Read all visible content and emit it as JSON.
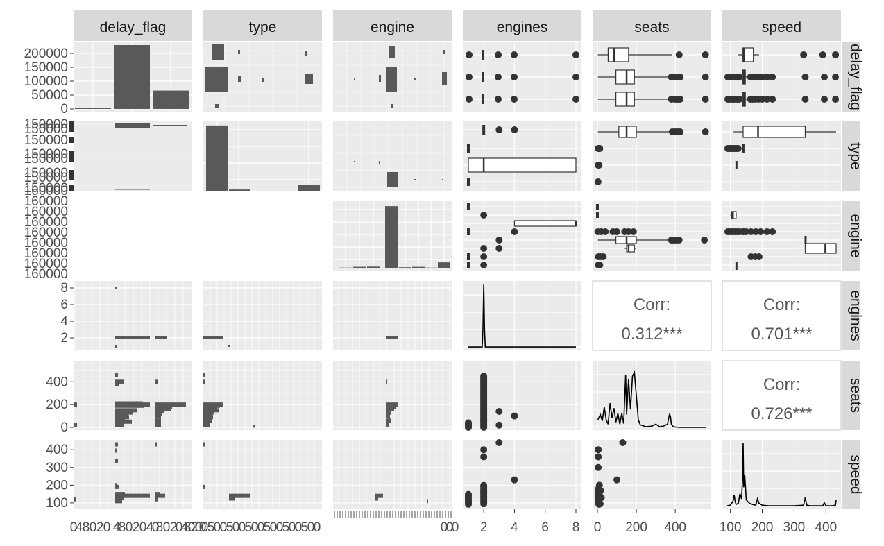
{
  "chart_data": {
    "type": "pairs",
    "variables": [
      "delay_flag",
      "type",
      "engine",
      "engines",
      "seats",
      "speed"
    ],
    "row_tick_labels": {
      "delay_flag": [
        "200000",
        "150000",
        "100000",
        "50000",
        "0"
      ],
      "type": [
        "150000",
        "150000",
        "150000",
        "150000",
        "150000",
        "150000",
        "150000",
        "150000"
      ],
      "engine": [
        "160000",
        "160000",
        "160000",
        "160000",
        "160000",
        "160000",
        "160000",
        "160000",
        "160000"
      ],
      "engines": [
        "8",
        "6",
        "4",
        "2"
      ],
      "seats": [
        "400",
        "200",
        "0"
      ],
      "speed": [
        "400",
        "300",
        "200",
        "100"
      ]
    },
    "col_tick_labels": {
      "delay_flag": [
        "0",
        "4",
        "8",
        "0",
        "2",
        "0",
        "4",
        "8",
        "0",
        "2",
        "0",
        "4",
        "0",
        "8",
        "0",
        "2",
        "0",
        "4",
        "8",
        "0",
        "2",
        "0",
        "0"
      ],
      "type": [
        "0",
        "5",
        "0",
        "0",
        "5",
        "0",
        "0",
        "5",
        "0",
        "0",
        "5",
        "0",
        "0",
        "5",
        "0",
        "0",
        "5",
        "0",
        "0"
      ],
      "engine": [
        "0",
        "0",
        "0"
      ],
      "engines": [
        "2",
        "4",
        "6",
        "8"
      ],
      "seats": [
        "0",
        "200",
        "400"
      ],
      "speed": [
        "100",
        "200",
        "300",
        "400"
      ]
    },
    "delay_flag_counts": [
      5000,
      230000,
      66000
    ],
    "delay_flag_ylim": [
      0,
      230000
    ],
    "type_counts": [
      152000,
      3000,
      14000
    ],
    "engine_counts": [
      500,
      2500,
      3000,
      158000,
      1500,
      2500,
      500,
      14000
    ],
    "engines_range": [
      1,
      8
    ],
    "seats_range": [
      2,
      600
    ],
    "speed_range": [
      90,
      432
    ],
    "engines_density": {
      "x": [
        1,
        1.9,
        1.95,
        2,
        2.05,
        2.1,
        3,
        4,
        8
      ],
      "y": [
        0.01,
        0.01,
        0.3,
        1.0,
        0.3,
        0.01,
        0.01,
        0.01,
        0.01
      ]
    },
    "seats_density": {
      "x": [
        2,
        15,
        25,
        35,
        45,
        55,
        65,
        75,
        85,
        95,
        105,
        115,
        125,
        135,
        145,
        150,
        160,
        170,
        180,
        190,
        200,
        210,
        220,
        250,
        280,
        300,
        320,
        340,
        360,
        370,
        375,
        380,
        390,
        420,
        500,
        560
      ],
      "y": [
        0.12,
        0.2,
        0.1,
        0.32,
        0.12,
        0.05,
        0.38,
        0.15,
        0.3,
        0.08,
        0.22,
        0.05,
        0.22,
        0.06,
        0.82,
        0.2,
        0.75,
        0.28,
        0.8,
        0.86,
        0.5,
        0.12,
        0.04,
        0.01,
        0.02,
        0.05,
        0.01,
        0.02,
        0.05,
        0.2,
        0.18,
        0.05,
        0.01,
        0.0,
        0.0,
        0.0
      ]
    },
    "speed_density": {
      "x": [
        90,
        100,
        108,
        112,
        115,
        118,
        125,
        130,
        135,
        138,
        140,
        142,
        145,
        150,
        160,
        170,
        180,
        185,
        190,
        200,
        220,
        250,
        300,
        330,
        335,
        340,
        350,
        390,
        395,
        400,
        420,
        430,
        432
      ],
      "y": [
        0.01,
        0.02,
        0.08,
        0.18,
        0.08,
        0.03,
        0.05,
        0.2,
        0.12,
        0.4,
        1.0,
        0.3,
        0.5,
        0.1,
        0.05,
        0.03,
        0.02,
        0.12,
        0.05,
        0.02,
        0.01,
        0.01,
        0.01,
        0.02,
        0.14,
        0.02,
        0.01,
        0.01,
        0.06,
        0.01,
        0.01,
        0.02,
        0.1
      ]
    },
    "correlations": [
      {
        "row": "engines",
        "col": "seats",
        "label": "Corr:",
        "value": "0.312***"
      },
      {
        "row": "engines",
        "col": "speed",
        "label": "Corr:",
        "value": "0.701***"
      },
      {
        "row": "seats",
        "col": "speed",
        "label": "Corr:",
        "value": "0.726***"
      }
    ],
    "colors": {
      "panel_bg": "#ebebeb",
      "grid": "#ffffff",
      "strip_bg": "#d9d9d9",
      "geom": "#595959",
      "point": "#333333",
      "text": "#1a1a1a",
      "tick": "#4d4d4d"
    }
  }
}
